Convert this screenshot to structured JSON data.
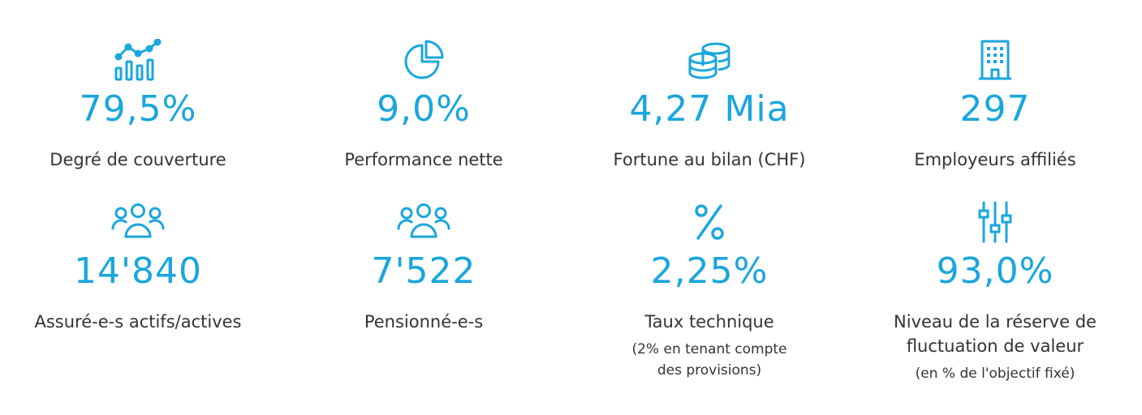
{
  "stats": [
    {
      "icon": "bar-line-chart-icon",
      "value": "79,5%",
      "label": "Degré de couverture"
    },
    {
      "icon": "pie-chart-icon",
      "value": "9,0%",
      "label": "Performance nette"
    },
    {
      "icon": "coins-stack-icon",
      "value": "4,27 Mia",
      "label": "Fortune au bilan (CHF)"
    },
    {
      "icon": "building-icon",
      "value": "297",
      "label": "Employeurs affiliés"
    },
    {
      "icon": "people-group-icon",
      "value": "14'840",
      "label": "Assuré-e-s actifs/actives"
    },
    {
      "icon": "people-group-icon",
      "value": "7'522",
      "label": "Pensionné-e-s"
    },
    {
      "icon": "percent-icon",
      "value": "2,25%",
      "label": "Taux technique",
      "note_line1": "(2% en tenant compte",
      "note_line2": "des provisions)"
    },
    {
      "icon": "sliders-icon",
      "value": "93,0%",
      "label_line1": "Niveau de la réserve de",
      "label_line2": "fluctuation de valeur",
      "note": "(en % de l'objectif fixé)"
    }
  ],
  "colors": {
    "accent": "#1aa6dd",
    "text": "#333333",
    "background": "#ffffff"
  }
}
